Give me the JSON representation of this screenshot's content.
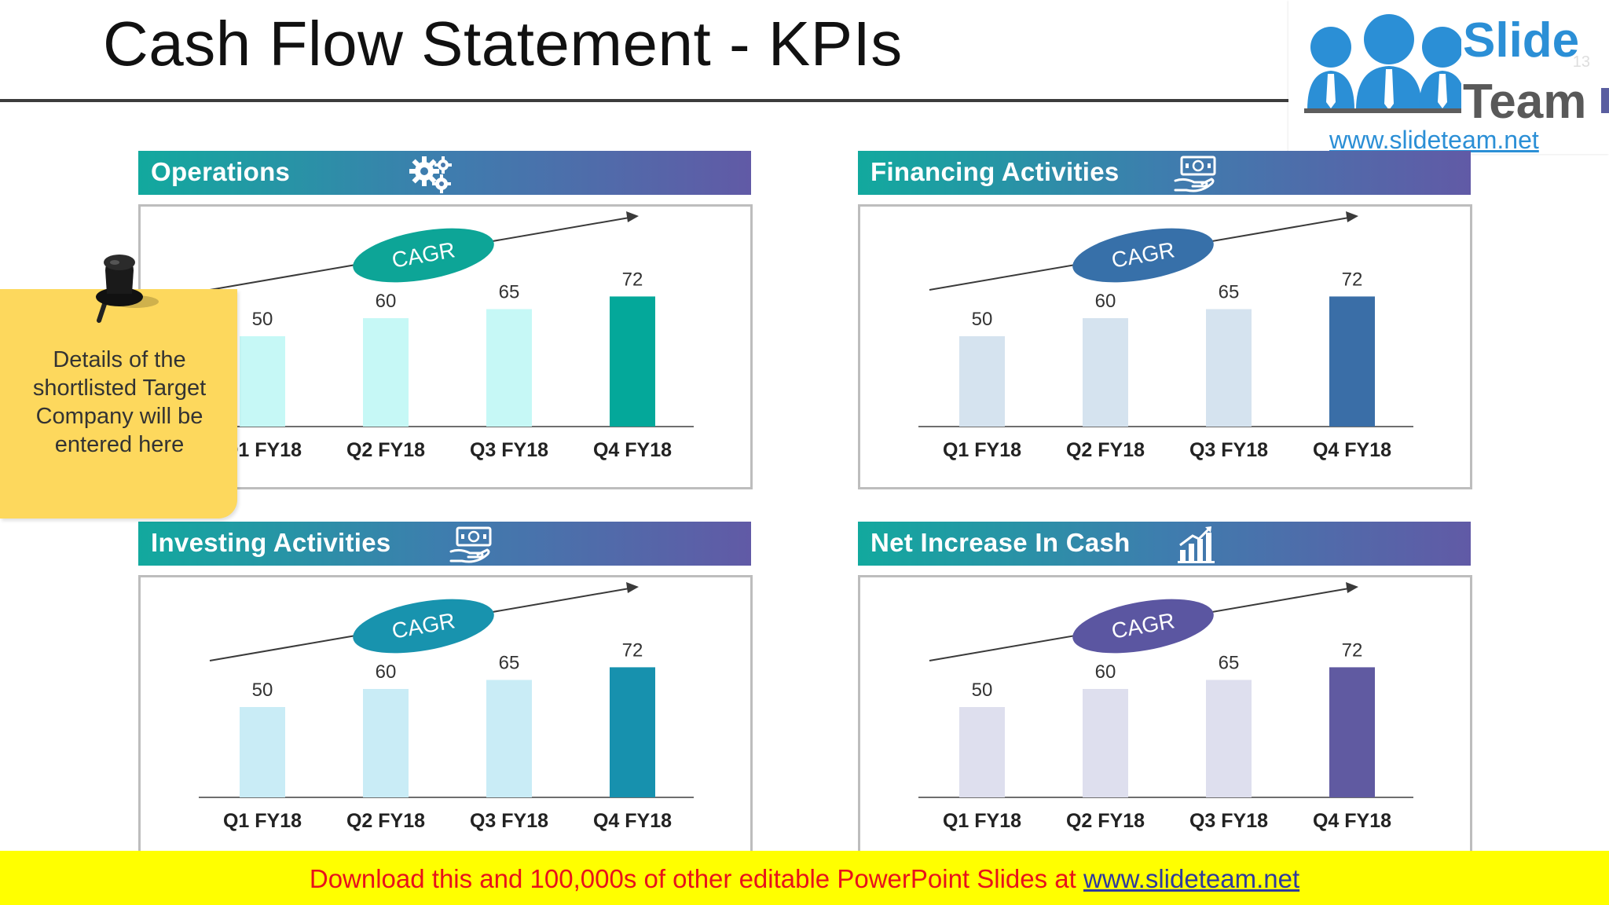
{
  "slide": {
    "title": "Cash Flow Statement - KPIs"
  },
  "logo": {
    "slide_text": "Slide",
    "team_text": "Team",
    "url": "www.slideteam.net",
    "page_number": "13"
  },
  "note": {
    "text": "Details of the shortlisted Target Company will be entered here"
  },
  "banner": {
    "text": "Download this and 100,000s of other editable PowerPoint Slides at ",
    "link": "www.slideteam.net"
  },
  "icons": {
    "operations": "gears-icon",
    "financing": "money-hand-icon",
    "investing": "money-hand-icon",
    "net_increase": "bar-growth-icon"
  },
  "chart_data": [
    {
      "type": "bar",
      "title": "Operations",
      "categories": [
        "Q1 FY18",
        "Q2 FY18",
        "Q3 FY18",
        "Q4 FY18"
      ],
      "values": [
        50,
        60,
        65,
        72
      ],
      "annotation": "CAGR",
      "colors": {
        "bars": [
          "#c6f8f6",
          "#c6f8f6",
          "#c6f8f6",
          "#04a89a"
        ],
        "oval": "#0da597"
      }
    },
    {
      "type": "bar",
      "title": "Financing Activities",
      "categories": [
        "Q1 FY18",
        "Q2 FY18",
        "Q3 FY18",
        "Q4 FY18"
      ],
      "values": [
        50,
        60,
        65,
        72
      ],
      "annotation": "CAGR",
      "colors": {
        "bars": [
          "#d5e3ef",
          "#d5e3ef",
          "#d5e3ef",
          "#3a6ea7"
        ],
        "oval": "#3770a9"
      }
    },
    {
      "type": "bar",
      "title": "Investing Activities",
      "categories": [
        "Q1 FY18",
        "Q2 FY18",
        "Q3 FY18",
        "Q4 FY18"
      ],
      "values": [
        50,
        60,
        65,
        72
      ],
      "annotation": "CAGR",
      "colors": {
        "bars": [
          "#c9ecf6",
          "#c9ecf6",
          "#c9ecf6",
          "#1791ae"
        ],
        "oval": "#1893ae"
      }
    },
    {
      "type": "bar",
      "title": "Net Increase In Cash",
      "categories": [
        "Q1 FY18",
        "Q2 FY18",
        "Q3 FY18",
        "Q4 FY18"
      ],
      "values": [
        50,
        60,
        65,
        72
      ],
      "annotation": "CAGR",
      "colors": {
        "bars": [
          "#dedfee",
          "#dedfee",
          "#dedfee",
          "#605aa1"
        ],
        "oval": "#5b56a1"
      }
    }
  ]
}
